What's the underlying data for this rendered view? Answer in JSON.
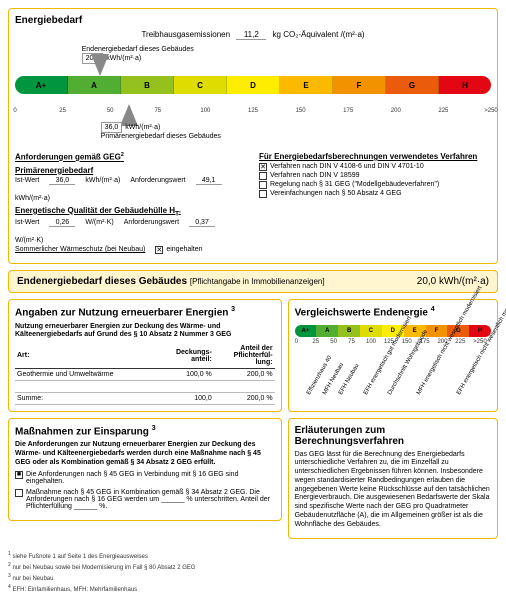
{
  "header": {
    "title": "Energiebedarf"
  },
  "ghg": {
    "label": "Treibhausgasemissionen",
    "value": "11,2",
    "unit": "kg CO₂-Äquivalent /(m²·a)"
  },
  "topArrow": {
    "value": "20,0",
    "unit": "kWh/(m²·a)",
    "label": "Endenergiebedarf dieses Gebäudes",
    "position_pct": 18
  },
  "bottomArrow": {
    "value": "36,0",
    "unit": "kWh/(m²·a)",
    "label": "Primärenergiebedarf dieses Gebäudes",
    "position_pct": 23
  },
  "scale": {
    "segments": [
      {
        "label": "A+",
        "color": "#009640",
        "width": 9
      },
      {
        "label": "A",
        "color": "#52ae32",
        "width": 9
      },
      {
        "label": "B",
        "color": "#95c11f",
        "width": 9
      },
      {
        "label": "C",
        "color": "#dedc00",
        "width": 9
      },
      {
        "label": "D",
        "color": "#ffed00",
        "width": 9
      },
      {
        "label": "E",
        "color": "#fbba00",
        "width": 9
      },
      {
        "label": "F",
        "color": "#f39200",
        "width": 9
      },
      {
        "label": "G",
        "color": "#ea5b0c",
        "width": 9
      },
      {
        "label": "H",
        "color": "#e30613",
        "width": 9
      }
    ],
    "ticks": [
      "0",
      "25",
      "50",
      "75",
      "100",
      "125",
      "150",
      "175",
      "200",
      "225",
      ">250"
    ]
  },
  "geg": {
    "title": "Anforderungen gemäß GEG",
    "fn": "2",
    "primTitle": "Primärenergiebedarf",
    "row1": {
      "l1": "Ist-Wert",
      "v1": "36,0",
      "u1": "kWh/(m²·a)",
      "l2": "Anforderungswert",
      "v2": "49,1",
      "u2": "kWh/(m²·a)"
    },
    "huTitle": "Energetische Qualität der Gebäudehülle H",
    "huSub": "T'",
    "row2": {
      "l1": "Ist-Wert",
      "v1": "0,26",
      "u1": "W/(m²·K)",
      "l2": "Anforderungswert",
      "v2": "0,37",
      "u2": "W/(m²·K)"
    },
    "summerTitle": "Sommerlicher Wärmeschutz (bei Neubau)",
    "summerChecked": true,
    "summerLabel": "eingehalten"
  },
  "verfahren": {
    "title": "Für Energiebedarfsberechnungen verwendetes Verfahren",
    "items": [
      {
        "label": "Verfahren nach DIN V 4108-6 und DIN V 4701-10",
        "checked": true
      },
      {
        "label": "Verfahren nach DIN V 18599",
        "checked": false
      },
      {
        "label": "Regelung nach § 31 GEG (\"Modellgebäudeverfahren\")",
        "checked": false
      },
      {
        "label": "Vereinfachungen nach § 50 Absatz 4 GEG",
        "checked": false
      }
    ]
  },
  "endBar": {
    "title": "Endenergiebedarf dieses Gebäudes",
    "sub": "[Pflichtangabe in Immobilienanzeigen]",
    "value": "20,0 kWh/(m²·a)"
  },
  "renew": {
    "title": "Angaben zur Nutzung erneuerbarer Energien",
    "fn": "3",
    "intro": "Nutzung erneuerbarer Energien zur Deckung des Wärme- und Kälteenergiebedarfs auf Grund des § 10 Absatz 2 Nummer 3 GEG",
    "head": {
      "c1": "Art:",
      "c2": "Deckungs-\nanteil:",
      "c3": "Anteil der\nPflichterfül-\nlung:"
    },
    "rows": [
      {
        "c1": "Geothermie und Umweltwärme",
        "c2": "100,0 %",
        "c3": "200,0 %"
      },
      {
        "c1": "",
        "c2": "",
        "c3": ""
      }
    ],
    "sum": {
      "c1": "Summe:",
      "c2": "100,0",
      "c3": "200,0 %"
    }
  },
  "mass": {
    "title": "Maßnahmen zur Einsparung",
    "fn": "3",
    "intro": "Die Anforderungen zur Nutzung erneuerbarer Energien zur Deckung des Wärme- und Kälteenergiebedarfs werden durch eine Maßnahme nach § 45 GEG oder als Kombination gemäß § 34 Absatz 2 GEG erfüllt.",
    "items": [
      {
        "label": "Die Anforderungen nach § 45 GEG in Verbindung mit § 16 GEG sind eingehalten.",
        "checked": true
      },
      {
        "label": "Maßnahme nach § 45 GEG in Kombination gemäß § 34 Absatz 2 GEG. Die Anforderungen nach § 16 GEG werden um ______ % unterschritten. Anteil der Pflichterfüllung ______ %.",
        "checked": false
      }
    ]
  },
  "vergleich": {
    "title": "Vergleichswerte Endenergie",
    "fn": "4",
    "segments": [
      {
        "label": "A+",
        "color": "#009640",
        "w": 1
      },
      {
        "label": "A",
        "color": "#52ae32",
        "w": 1
      },
      {
        "label": "B",
        "color": "#95c11f",
        "w": 1
      },
      {
        "label": "C",
        "color": "#dedc00",
        "w": 1
      },
      {
        "label": "D",
        "color": "#ffed00",
        "w": 1
      },
      {
        "label": "E",
        "color": "#fbba00",
        "w": 1
      },
      {
        "label": "F",
        "color": "#f39200",
        "w": 1
      },
      {
        "label": "G",
        "color": "#ea5b0c",
        "w": 1
      },
      {
        "label": "H",
        "color": "#e30613",
        "w": 1
      }
    ],
    "ticks": [
      "0",
      "25",
      "50",
      "75",
      "100",
      "125",
      "150",
      "175",
      "200",
      "225",
      ">250"
    ],
    "diag": [
      {
        "t": "Effizienzhaus 40",
        "x": 6
      },
      {
        "t": "MFH Neubau",
        "x": 14
      },
      {
        "t": "EFH Neubau",
        "x": 22
      },
      {
        "t": "EFH energetisch\ngut modernisiert",
        "x": 35
      },
      {
        "t": "Durchschnitt\nWohngebäude",
        "x": 47
      },
      {
        "t": "MFH energetisch nicht\nwesentlich modernisiert",
        "x": 62
      },
      {
        "t": "EFH energetisch nicht\nwesentlich modernisiert",
        "x": 82
      }
    ]
  },
  "erlaut": {
    "title": "Erläuterungen zum Berechnungsverfahren",
    "text": "Das GEG lässt für die Berechnung des Energiebedarfs unterschiedliche Verfahren zu, die im Einzelfall zu unterschiedlichen Ergebnissen führen können. Insbesondere wegen standardisierter Randbedingungen erlauben die angegebenen Werte keine Rückschlüsse auf den tatsächlichen Energieverbrauch. Die ausgewiesenen Bedarfswerte der Skala sind spezifische Werte nach der GEG pro Quadratmeter Gebäudenutzfläche (A), die im Allgemeinen größer ist als die Wohnfläche des Gebäudes."
  },
  "footnotes": [
    "siehe Fußnote 1 auf Seite 1 des Energieausweises",
    "nur bei Neubau sowie bei Modernisierung im Fall § 80 Absatz 2 GEG",
    "nur bei Neubau",
    "EFH: Einfamilienhaus, MFH: Mehrfamilienhaus"
  ],
  "fnmarks": [
    "1",
    "2",
    "3",
    "4"
  ]
}
